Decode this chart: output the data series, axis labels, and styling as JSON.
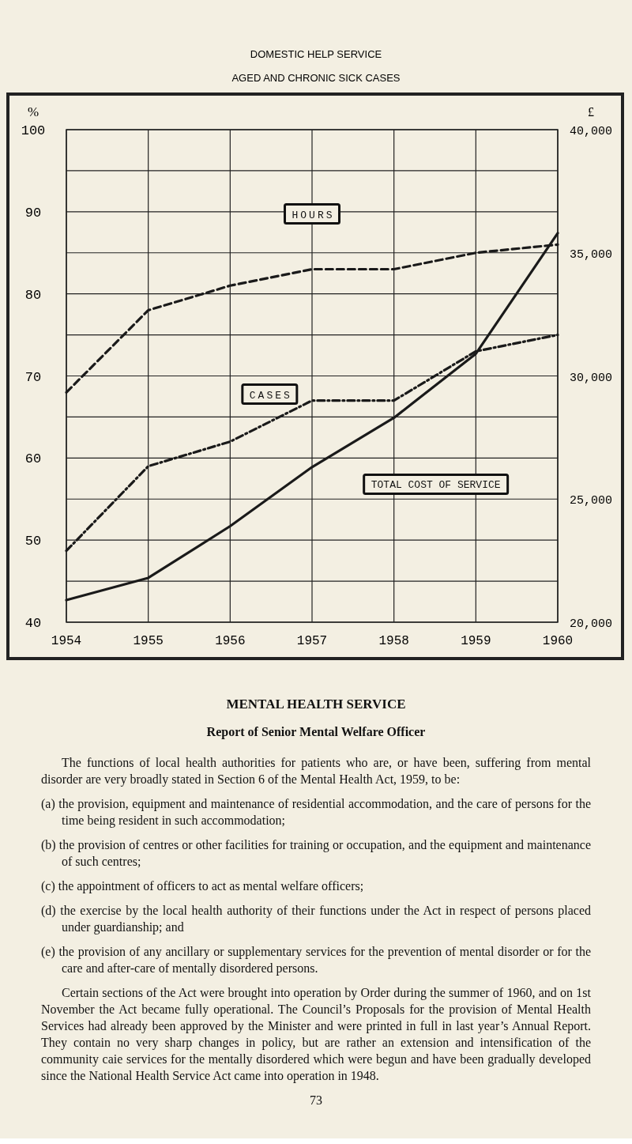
{
  "chart_data": {
    "type": "line",
    "title": "DOMESTIC HELP SERVICE",
    "subtitle": "AGED AND CHRONIC SICK CASES",
    "ylabel": "%",
    "y2label": "£",
    "x": [
      1954,
      1955,
      1956,
      1957,
      1958,
      1959,
      1960
    ],
    "series": [
      {
        "name": "HOURS",
        "color": "#1a1a1a",
        "line_style": "dashed",
        "values": [
          68,
          78,
          81,
          83,
          83,
          85,
          86
        ]
      },
      {
        "name": "CASES",
        "color": "#1a1a1a",
        "line_style": "dashdot",
        "values": [
          48.7,
          59,
          62,
          67,
          67,
          73,
          75
        ]
      },
      {
        "name": "TOTAL COST OF SERVICE",
        "color": "#1a1a1a",
        "line_style": "solid",
        "axis": "y2",
        "values": [
          20900,
          21800,
          23900,
          26300,
          28300,
          30900,
          35800
        ]
      }
    ],
    "xlim": [
      1954,
      1960
    ],
    "xticks": [
      1954,
      1955,
      1956,
      1957,
      1958,
      1959,
      1960
    ],
    "ylim": [
      40,
      100
    ],
    "yticks": [
      40,
      {
        "value": 45,
        "label": null
      },
      50,
      {
        "value": 55,
        "label": null
      },
      60,
      {
        "value": 65,
        "label": null
      },
      70,
      {
        "value": 75,
        "label": null
      },
      80,
      {
        "value": 85,
        "label": null
      },
      90,
      {
        "value": 95,
        "label": null
      },
      100
    ],
    "y2lim": [
      20000,
      40000
    ],
    "y2ticks": [
      {
        "value": 20000,
        "label": "20,000"
      },
      {
        "value": 25000,
        "label": "25,000"
      },
      {
        "value": 30000,
        "label": "30,000"
      },
      {
        "value": 35000,
        "label": "35,000"
      },
      {
        "value": 40000,
        "label": "40,000"
      }
    ],
    "grid": true,
    "marker": "none",
    "annotations": [
      "MENTAL HEALTH SERVICE",
      "Report of Senior Mental Welfare Officer",
      "The functions of local health authorities for patients who are, or have been, suffering from mental disorder are very broadly stated in Section 6 of the Mental Health Act, 1959, to be:",
      "(a) the provision, equipment and maintenance of residential accommodation, and the care of persons for the time being resident in such accommodation;",
      "(b) the provision of centres or other facilities for training or occupation, and the equipment and maintenance of such centres;",
      "(c) the appointment of officers to act as mental welfare officers;",
      "(d) the exercise by the local health authority of their functions under the Act in respect of persons placed under guardianship; and",
      "(e) the provision of any ancillary or supplementary services for the prevention of mental disorder or for the care and after-care of mentally disordered persons.",
      "Certain sections of the Act were brought into operation by Order during the summer of 1960, and on 1st November the Act became fully operational. The Council’s Proposals for the provision of Mental Health Services had already been approved by the Minister and were printed in full in last year’s Annual Report. They contain no very sharp changes in policy, but are rather an extension and intensification of the community caie services for the mentally disordered which were begun and have been gradually developed since the National Health Service Act came into operation in 1948.",
      "73"
    ]
  }
}
